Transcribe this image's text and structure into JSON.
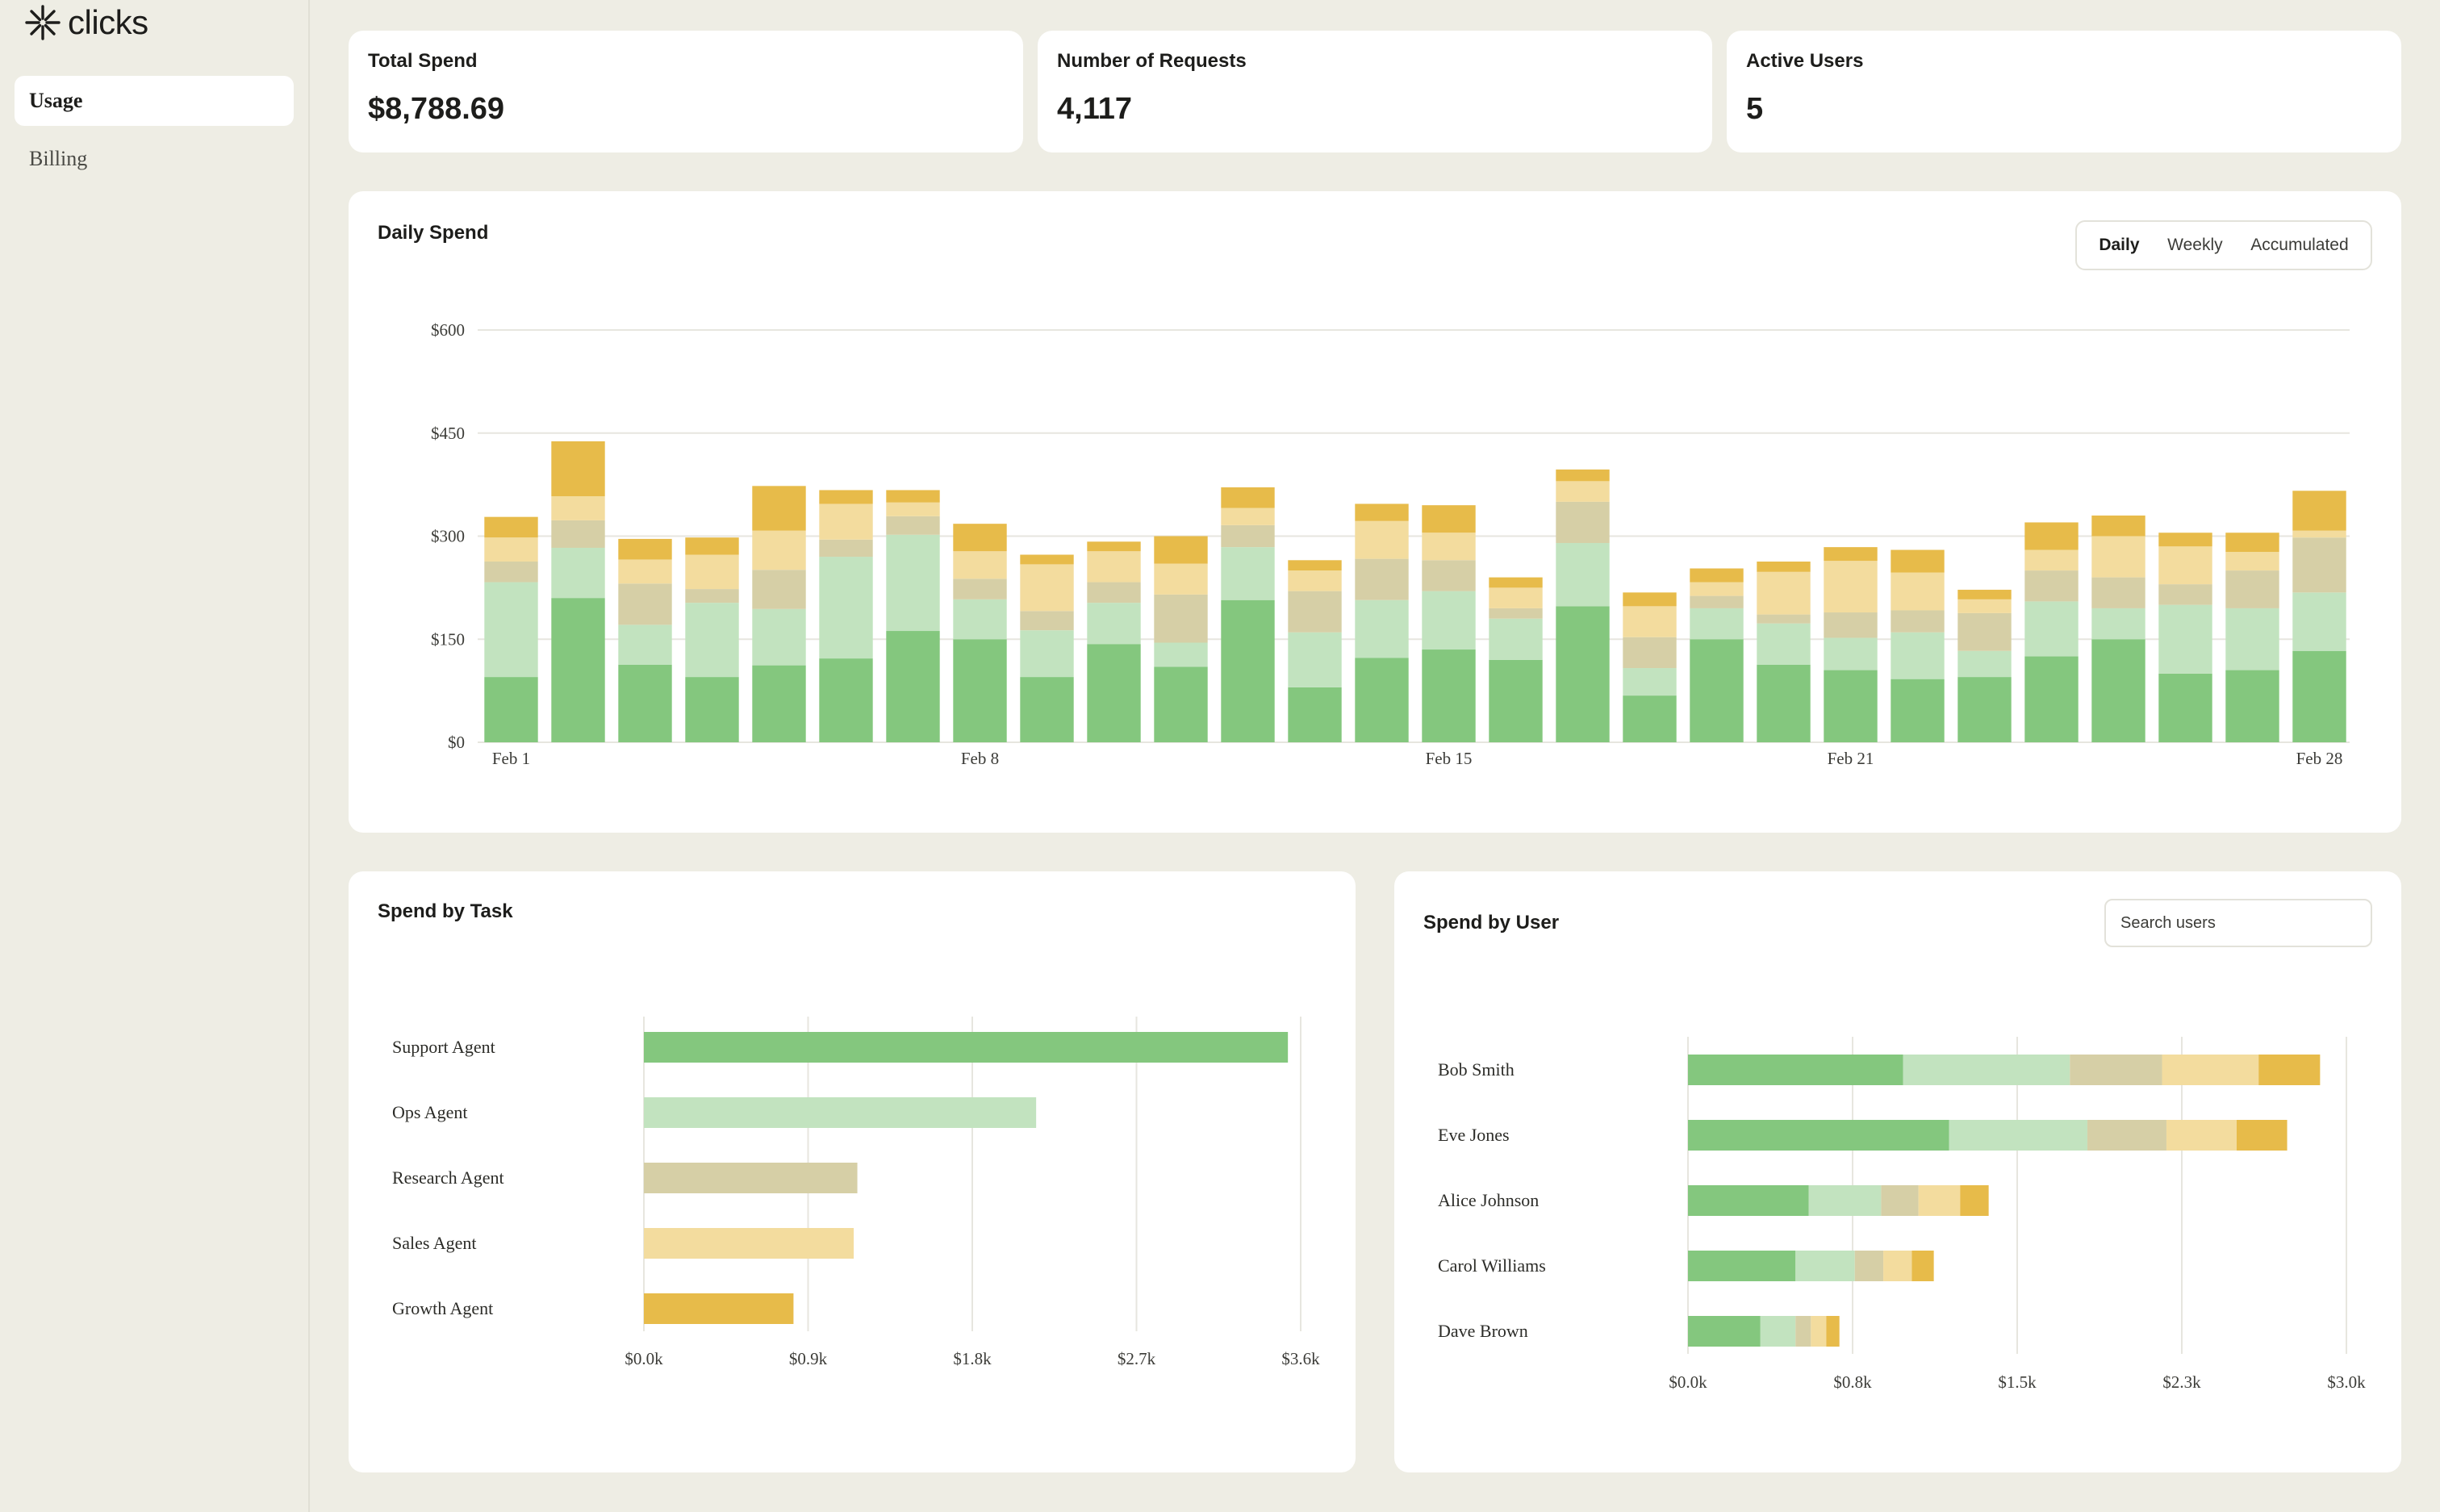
{
  "app": {
    "name": "clicks"
  },
  "sidebar": {
    "items": [
      {
        "label": "Usage",
        "active": true
      },
      {
        "label": "Billing",
        "active": false
      }
    ]
  },
  "stats": [
    {
      "label": "Total Spend",
      "value": "$8,788.69"
    },
    {
      "label": "Number of Requests",
      "value": "4,117"
    },
    {
      "label": "Active Users",
      "value": "5"
    }
  ],
  "daily": {
    "title": "Daily Spend",
    "toggle": [
      "Daily",
      "Weekly",
      "Accumulated"
    ],
    "toggle_active": "Daily"
  },
  "task": {
    "title": "Spend by Task"
  },
  "user": {
    "title": "Spend by User",
    "search_placeholder": "Search users"
  },
  "colors": {
    "series": [
      "#84c77e",
      "#c2e3bf",
      "#d6cfa6",
      "#f3dc9e",
      "#e7bb4a"
    ],
    "background": "#eeede4",
    "card": "#ffffff",
    "grid": "#e7e6df"
  },
  "chart_data": [
    {
      "type": "bar",
      "stacked": true,
      "title": "Daily Spend",
      "x_tick_labels": [
        "Feb 1",
        "Feb 8",
        "Feb 15",
        "Feb 21",
        "Feb 28"
      ],
      "x_tick_indices": [
        0,
        7,
        14,
        20,
        27
      ],
      "y_ticks": [
        "$0",
        "$150",
        "$300",
        "$450",
        "$600"
      ],
      "ylim": [
        0,
        600
      ],
      "legend": "none",
      "grid": true,
      "values": [
        [
          95,
          138,
          30,
          35,
          30
        ],
        [
          210,
          73,
          40,
          35,
          80
        ],
        [
          113,
          58,
          60,
          35,
          30
        ],
        [
          95,
          108,
          20,
          50,
          25
        ],
        [
          112,
          82,
          57,
          57,
          65
        ],
        [
          122,
          148,
          25,
          52,
          20
        ],
        [
          162,
          140,
          27,
          20,
          18
        ],
        [
          150,
          58,
          30,
          40,
          40
        ],
        [
          95,
          68,
          28,
          68,
          14
        ],
        [
          143,
          60,
          30,
          45,
          14
        ],
        [
          110,
          35,
          70,
          45,
          40
        ],
        [
          207,
          77,
          32,
          25,
          30
        ],
        [
          80,
          80,
          60,
          30,
          15
        ],
        [
          123,
          84,
          60,
          55,
          25
        ],
        [
          135,
          85,
          45,
          40,
          40
        ],
        [
          120,
          60,
          15,
          30,
          15
        ],
        [
          198,
          92,
          60,
          30,
          17
        ],
        [
          68,
          40,
          45,
          45,
          20
        ],
        [
          150,
          45,
          18,
          20,
          20
        ],
        [
          113,
          60,
          13,
          62,
          15
        ],
        [
          105,
          47,
          37,
          75,
          20
        ],
        [
          92,
          68,
          32,
          55,
          33
        ],
        [
          95,
          38,
          55,
          20,
          14
        ],
        [
          125,
          80,
          45,
          30,
          40
        ],
        [
          150,
          45,
          45,
          60,
          30
        ],
        [
          100,
          100,
          30,
          55,
          20
        ],
        [
          105,
          90,
          55,
          27,
          28
        ],
        [
          133,
          85,
          80,
          10,
          58
        ]
      ]
    },
    {
      "type": "bar",
      "orientation": "horizontal",
      "title": "Spend by Task",
      "categories": [
        "Support Agent",
        "Ops Agent",
        "Research Agent",
        "Sales Agent",
        "Growth Agent"
      ],
      "values": [
        3530,
        2150,
        1170,
        1150,
        820
      ],
      "x_ticks": [
        "$0.0k",
        "$0.9k",
        "$1.8k",
        "$2.7k",
        "$3.6k"
      ],
      "xlim": [
        0,
        3600
      ],
      "legend": "none",
      "grid": true
    },
    {
      "type": "bar",
      "orientation": "horizontal",
      "stacked": true,
      "title": "Spend by User",
      "categories": [
        "Bob Smith",
        "Eve Jones",
        "Alice Johnson",
        "Carol Williams",
        "Dave Brown"
      ],
      "values": [
        [
          980,
          760,
          420,
          440,
          280
        ],
        [
          1190,
          630,
          360,
          320,
          230
        ],
        [
          550,
          330,
          170,
          190,
          130
        ],
        [
          490,
          270,
          130,
          130,
          100
        ],
        [
          330,
          160,
          70,
          70,
          60
        ]
      ],
      "x_ticks": [
        "$0.0k",
        "$0.8k",
        "$1.5k",
        "$2.3k",
        "$3.0k"
      ],
      "xlim": [
        0,
        3000
      ],
      "legend": "none",
      "grid": true
    }
  ]
}
